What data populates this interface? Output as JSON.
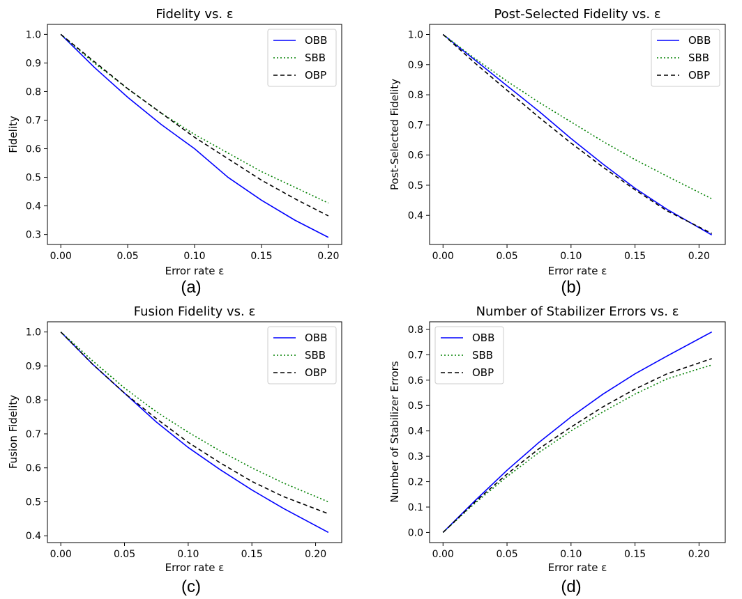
{
  "figure": {
    "colors": {
      "OBB": "#0000ff",
      "SBB": "#008000",
      "OBP": "#000000"
    }
  },
  "chart_data": [
    {
      "id": "a",
      "type": "line",
      "panel_label": "(a)",
      "title": "Fidelity vs. ε",
      "xlabel": "Error rate ε",
      "ylabel": "Fidelity",
      "xlim": [
        -0.01,
        0.21
      ],
      "ylim": [
        0.265,
        1.035
      ],
      "xticks": [
        0.0,
        0.05,
        0.1,
        0.15,
        0.2
      ],
      "xtick_labels": [
        "0.00",
        "0.05",
        "0.10",
        "0.15",
        "0.20"
      ],
      "yticks": [
        0.3,
        0.4,
        0.5,
        0.6,
        0.7,
        0.8,
        0.9,
        1.0
      ],
      "ytick_labels": [
        "0.3",
        "0.4",
        "0.5",
        "0.6",
        "0.7",
        "0.8",
        "0.9",
        "1.0"
      ],
      "legend": "top-right",
      "x": [
        0,
        0.025,
        0.05,
        0.075,
        0.1,
        0.125,
        0.15,
        0.175,
        0.2
      ],
      "series": [
        {
          "name": "OBB",
          "style": "solid",
          "values": [
            1.0,
            0.885,
            0.78,
            0.685,
            0.6,
            0.5,
            0.42,
            0.35,
            0.29
          ]
        },
        {
          "name": "SBB",
          "style": "dotted",
          "values": [
            1.0,
            0.9,
            0.81,
            0.725,
            0.65,
            0.585,
            0.52,
            0.465,
            0.41
          ]
        },
        {
          "name": "OBP",
          "style": "dashed",
          "values": [
            1.0,
            0.905,
            0.81,
            0.725,
            0.64,
            0.565,
            0.49,
            0.425,
            0.365
          ]
        }
      ]
    },
    {
      "id": "b",
      "type": "line",
      "panel_label": "(b)",
      "title": "Post-Selected Fidelity vs. ε",
      "xlabel": "Error rate ε",
      "ylabel": "Post-Selected Fidelity",
      "xlim": [
        -0.0105,
        0.2205
      ],
      "ylim": [
        0.3035,
        1.0335
      ],
      "xticks": [
        0.0,
        0.05,
        0.1,
        0.15,
        0.2
      ],
      "xtick_labels": [
        "0.00",
        "0.05",
        "0.10",
        "0.15",
        "0.20"
      ],
      "yticks": [
        0.4,
        0.5,
        0.6,
        0.7,
        0.8,
        0.9,
        1.0
      ],
      "ytick_labels": [
        "0.4",
        "0.5",
        "0.6",
        "0.7",
        "0.8",
        "0.9",
        "1.0"
      ],
      "legend": "top-right",
      "x": [
        0,
        0.025,
        0.05,
        0.075,
        0.1,
        0.125,
        0.15,
        0.175,
        0.21
      ],
      "series": [
        {
          "name": "OBB",
          "style": "solid",
          "values": [
            1.0,
            0.915,
            0.83,
            0.745,
            0.655,
            0.57,
            0.49,
            0.42,
            0.335
          ]
        },
        {
          "name": "SBB",
          "style": "dotted",
          "values": [
            1.0,
            0.92,
            0.845,
            0.775,
            0.71,
            0.645,
            0.585,
            0.53,
            0.455
          ]
        },
        {
          "name": "OBP",
          "style": "dashed",
          "values": [
            1.0,
            0.905,
            0.815,
            0.725,
            0.64,
            0.56,
            0.485,
            0.415,
            0.34
          ]
        }
      ]
    },
    {
      "id": "c",
      "type": "line",
      "panel_label": "(c)",
      "title": "Fusion Fidelity vs. ε",
      "xlabel": "Error rate ε",
      "ylabel": "Fusion Fidelity",
      "xlim": [
        -0.0105,
        0.2205
      ],
      "ylim": [
        0.38,
        1.03
      ],
      "xticks": [
        0.0,
        0.05,
        0.1,
        0.15,
        0.2
      ],
      "xtick_labels": [
        "0.00",
        "0.05",
        "0.10",
        "0.15",
        "0.20"
      ],
      "yticks": [
        0.4,
        0.5,
        0.6,
        0.7,
        0.8,
        0.9,
        1.0
      ],
      "ytick_labels": [
        "0.4",
        "0.5",
        "0.6",
        "0.7",
        "0.8",
        "0.9",
        "1.0"
      ],
      "legend": "top-right",
      "x": [
        0,
        0.025,
        0.05,
        0.075,
        0.1,
        0.125,
        0.15,
        0.175,
        0.21
      ],
      "series": [
        {
          "name": "OBB",
          "style": "solid",
          "values": [
            1.0,
            0.905,
            0.82,
            0.735,
            0.66,
            0.595,
            0.535,
            0.48,
            0.41
          ]
        },
        {
          "name": "SBB",
          "style": "dotted",
          "values": [
            1.0,
            0.915,
            0.835,
            0.765,
            0.705,
            0.65,
            0.6,
            0.555,
            0.5
          ]
        },
        {
          "name": "OBP",
          "style": "dashed",
          "values": [
            1.0,
            0.905,
            0.82,
            0.745,
            0.675,
            0.615,
            0.56,
            0.515,
            0.465
          ]
        }
      ]
    },
    {
      "id": "d",
      "type": "line",
      "panel_label": "(d)",
      "title": "Number of Stabilizer Errors vs. ε",
      "xlabel": "Error rate ε",
      "ylabel": "Number of Stabilizer Errors",
      "xlim": [
        -0.0105,
        0.2205
      ],
      "ylim": [
        -0.04,
        0.83
      ],
      "xticks": [
        0.0,
        0.05,
        0.1,
        0.15,
        0.2
      ],
      "xtick_labels": [
        "0.00",
        "0.05",
        "0.10",
        "0.15",
        "0.20"
      ],
      "yticks": [
        0.0,
        0.1,
        0.2,
        0.3,
        0.4,
        0.5,
        0.6,
        0.7,
        0.8
      ],
      "ytick_labels": [
        "0.0",
        "0.1",
        "0.2",
        "0.3",
        "0.4",
        "0.5",
        "0.6",
        "0.7",
        "0.8"
      ],
      "legend": "top-left",
      "x": [
        0,
        0.025,
        0.05,
        0.075,
        0.1,
        0.125,
        0.15,
        0.175,
        0.21
      ],
      "series": [
        {
          "name": "OBB",
          "style": "solid",
          "values": [
            0.0,
            0.125,
            0.245,
            0.355,
            0.455,
            0.545,
            0.625,
            0.695,
            0.79
          ]
        },
        {
          "name": "SBB",
          "style": "dotted",
          "values": [
            0.0,
            0.115,
            0.22,
            0.315,
            0.4,
            0.475,
            0.545,
            0.605,
            0.66
          ]
        },
        {
          "name": "OBP",
          "style": "dashed",
          "values": [
            0.0,
            0.12,
            0.23,
            0.33,
            0.415,
            0.495,
            0.565,
            0.625,
            0.685
          ]
        }
      ]
    }
  ]
}
